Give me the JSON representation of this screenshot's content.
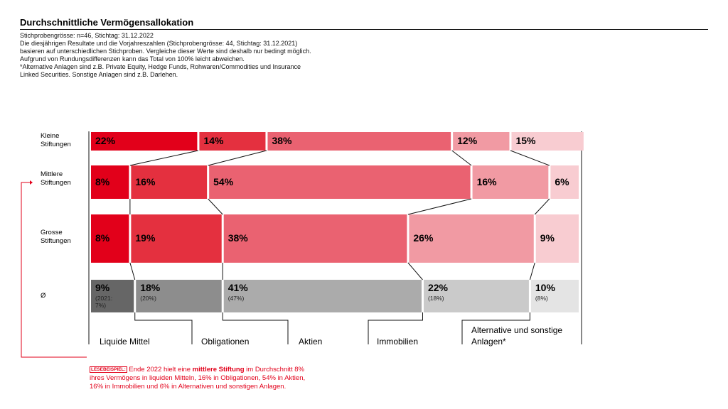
{
  "title": "Durchschnittliche Vermögensallokation",
  "notes": [
    "Stichprobengrösse: n=46, Stichtag: 31.12.2022",
    "Die diesjährigen Resultate und die Vorjahreszahlen (Stichprobengrösse: 44, Stichtag: 31.12.2021)",
    "basieren auf unterschiedlichen Stichproben. Vergleiche dieser Werte sind deshalb nur bedingt möglich.",
    "Aufgrund von Rundungsdifferenzen kann das Total von 100% leicht abweichen.",
    "*Alternative Anlagen sind z.B. Private Equity, Hedge Funds, Rohwaren/Commodities und Insurance",
    "Linked Securities. Sonstige Anlagen sind z.B. Darlehen."
  ],
  "chart_data": {
    "type": "stacked-bar-horizontal",
    "categories": [
      "Kleine Stiftungen",
      "Mittlere Stiftungen",
      "Grosse Stiftungen",
      "Ø"
    ],
    "xlim": [
      0,
      100
    ],
    "series": [
      {
        "name": "Liquide Mittel",
        "colors": [
          "#e2001a",
          "#e2001a",
          "#e2001a",
          "#666666"
        ],
        "values": [
          22,
          8,
          8,
          9
        ],
        "value_labels": [
          "22%",
          "8%",
          "8%",
          "9%"
        ],
        "prior_label": "(2021: 7%)"
      },
      {
        "name": "Obligationen",
        "colors": [
          "#e4303f",
          "#e4303f",
          "#e4303f",
          "#8d8d8d"
        ],
        "values": [
          14,
          16,
          19,
          18
        ],
        "value_labels": [
          "14%",
          "16%",
          "19%",
          "18%"
        ],
        "prior_label": "(20%)"
      },
      {
        "name": "Aktien",
        "colors": [
          "#ea6271",
          "#ea6271",
          "#ea6271",
          "#ababab"
        ],
        "values": [
          38,
          54,
          38,
          41
        ],
        "value_labels": [
          "38%",
          "54%",
          "38%",
          "41%"
        ],
        "prior_label": "(47%)"
      },
      {
        "name": "Immobilien",
        "colors": [
          "#f19aa3",
          "#f19aa3",
          "#f19aa3",
          "#cacaca"
        ],
        "values": [
          12,
          16,
          26,
          22
        ],
        "value_labels": [
          "12%",
          "16%",
          "26%",
          "22%"
        ],
        "prior_label": "(18%)"
      },
      {
        "name": "Alternative und sonstige Anlagen*",
        "colors": [
          "#f8ccd1",
          "#f8ccd1",
          "#f8ccd1",
          "#e4e4e4"
        ],
        "values": [
          15,
          6,
          9,
          10
        ],
        "value_labels": [
          "15%",
          "6%",
          "9%",
          "10%"
        ],
        "prior_label": "(8%)"
      }
    ]
  },
  "annotation": {
    "tag": "LESEBEISPIEL:",
    "text_before": " Ende 2022 hielt eine ",
    "text_bold": "mittlere Stiftung",
    "text_after": " im Durchschnitt 8% ihres Vermögens in liquiden Mitteln, 16% in Obligationen, 54% in Aktien, 16% in Immobilien und 6% in Alternativen und sonstigen Anlagen."
  }
}
